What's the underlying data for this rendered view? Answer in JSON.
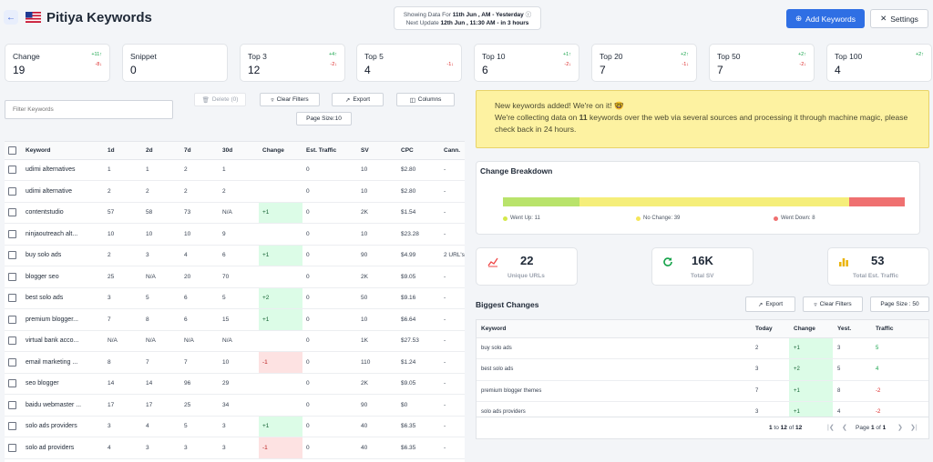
{
  "header": {
    "title": "Pitiya Keywords",
    "info_line1_prefix": "Showing Data For ",
    "info_line1_bold": "11th Jun , AM - Yesterday",
    "info_line2_prefix": "Next Update ",
    "info_line2_bold": "12th Jun , 11:30 AM - in 3 hours",
    "add_keywords_label": "Add Keywords",
    "settings_label": "Settings"
  },
  "stats": [
    {
      "label": "Change",
      "value": "19",
      "up": "+11",
      "down": "-8"
    },
    {
      "label": "Snippet",
      "value": "0",
      "up": "",
      "down": ""
    },
    {
      "label": "Top 3",
      "value": "12",
      "up": "+4",
      "down": "-2"
    },
    {
      "label": "Top 5",
      "value": "4",
      "up": "",
      "down": "-1"
    },
    {
      "label": "Top 10",
      "value": "6",
      "up": "+1",
      "down": "-2"
    },
    {
      "label": "Top 20",
      "value": "7",
      "up": "+2",
      "down": "-1"
    },
    {
      "label": "Top 50",
      "value": "7",
      "up": "+2",
      "down": "-2"
    },
    {
      "label": "Top 100",
      "value": "4",
      "up": "+2",
      "down": ""
    }
  ],
  "toolbar": {
    "filter_placeholder": "Filter Keywords",
    "delete_label": "Delete (0)",
    "clear_filters_label": "Clear Filters",
    "export_label": "Export",
    "columns_label": "Columns",
    "page_size_label": "Page Size:10"
  },
  "keywords_table": {
    "columns": [
      "Keyword",
      "1d",
      "2d",
      "7d",
      "30d",
      "Change",
      "Est. Traffic",
      "SV",
      "CPC",
      "Cann."
    ],
    "rows": [
      [
        "udimi alternatives",
        "1",
        "1",
        "2",
        "1",
        "",
        "0",
        "10",
        "$2.80",
        "-"
      ],
      [
        "udimi alternative",
        "2",
        "2",
        "2",
        "2",
        "",
        "0",
        "10",
        "$2.80",
        "-"
      ],
      [
        "contentstudio",
        "57",
        "58",
        "73",
        "N/A",
        "+1",
        "0",
        "2K",
        "$1.54",
        "-"
      ],
      [
        "ninjaoutreach alt...",
        "10",
        "10",
        "10",
        "9",
        "",
        "0",
        "10",
        "$23.28",
        "-"
      ],
      [
        "buy solo ads",
        "2",
        "3",
        "4",
        "6",
        "+1",
        "0",
        "90",
        "$4.99",
        "2 URL's"
      ],
      [
        "blogger seo",
        "25",
        "N/A",
        "20",
        "70",
        "",
        "0",
        "2K",
        "$9.05",
        "-"
      ],
      [
        "best solo ads",
        "3",
        "5",
        "6",
        "5",
        "+2",
        "0",
        "50",
        "$9.16",
        "-"
      ],
      [
        "premium blogger...",
        "7",
        "8",
        "6",
        "15",
        "+1",
        "0",
        "10",
        "$6.64",
        "-"
      ],
      [
        "virtual bank acco...",
        "N/A",
        "N/A",
        "N/A",
        "N/A",
        "",
        "0",
        "1K",
        "$27.53",
        "-"
      ],
      [
        "email marketing ...",
        "8",
        "7",
        "7",
        "10",
        "-1",
        "0",
        "110",
        "$1.24",
        "-"
      ],
      [
        "seo blogger",
        "14",
        "14",
        "96",
        "29",
        "",
        "0",
        "2K",
        "$9.05",
        "-"
      ],
      [
        "baidu webmaster ...",
        "17",
        "17",
        "25",
        "34",
        "",
        "0",
        "90",
        "$0",
        "-"
      ],
      [
        "solo ads providers",
        "3",
        "4",
        "5",
        "3",
        "+1",
        "0",
        "40",
        "$6.35",
        "-"
      ],
      [
        "solo ad providers",
        "4",
        "3",
        "3",
        "3",
        "-1",
        "0",
        "40",
        "$6.35",
        "-"
      ]
    ]
  },
  "notice": {
    "line1": "New keywords added! We're on it!",
    "line2_prefix": "We're collecting data on ",
    "line2_bold": "11",
    "line2_suffix": " keywords over the web via several sources and processing it through machine magic, please check back in 24 hours."
  },
  "breakdown": {
    "title": "Change Breakdown",
    "went_up": 11,
    "no_change": 39,
    "went_down": 8,
    "went_up_label": "Went Up: 11",
    "no_change_label": "No Change: 39",
    "went_down_label": "Went Down: 8",
    "colors": {
      "up": "#b9e36b",
      "none": "#f5ee7a",
      "down": "#ef7070"
    }
  },
  "summary": [
    {
      "value": "22",
      "label": "Unique URLs",
      "icon": "trend-chart-icon"
    },
    {
      "value": "16K",
      "label": "Total SV",
      "icon": "refresh-circle-icon"
    },
    {
      "value": "53",
      "label": "Total Est. Traffic",
      "icon": "bar-chart-icon"
    }
  ],
  "biggest_changes": {
    "title": "Biggest Changes",
    "export_label": "Export",
    "clear_filters_label": "Clear Filters",
    "page_size_label": "Page Size : 50",
    "columns": [
      "Keyword",
      "Today",
      "Change",
      "Yest.",
      "Traffic"
    ],
    "rows": [
      [
        "buy solo ads",
        "2",
        "+1",
        "3",
        "5"
      ],
      [
        "best solo ads",
        "3",
        "+2",
        "5",
        "4"
      ],
      [
        "premium blogger themes",
        "7",
        "+1",
        "8",
        "-2"
      ],
      [
        "solo ads providers",
        "3",
        "+1",
        "4",
        "-2"
      ]
    ],
    "pager_range_start": "1",
    "pager_range_mid": " to ",
    "pager_range_end": "12",
    "pager_of": " of ",
    "pager_total": "12",
    "page_text": "Page ",
    "page_current": "1",
    "page_of": " of ",
    "page_total": "1"
  }
}
